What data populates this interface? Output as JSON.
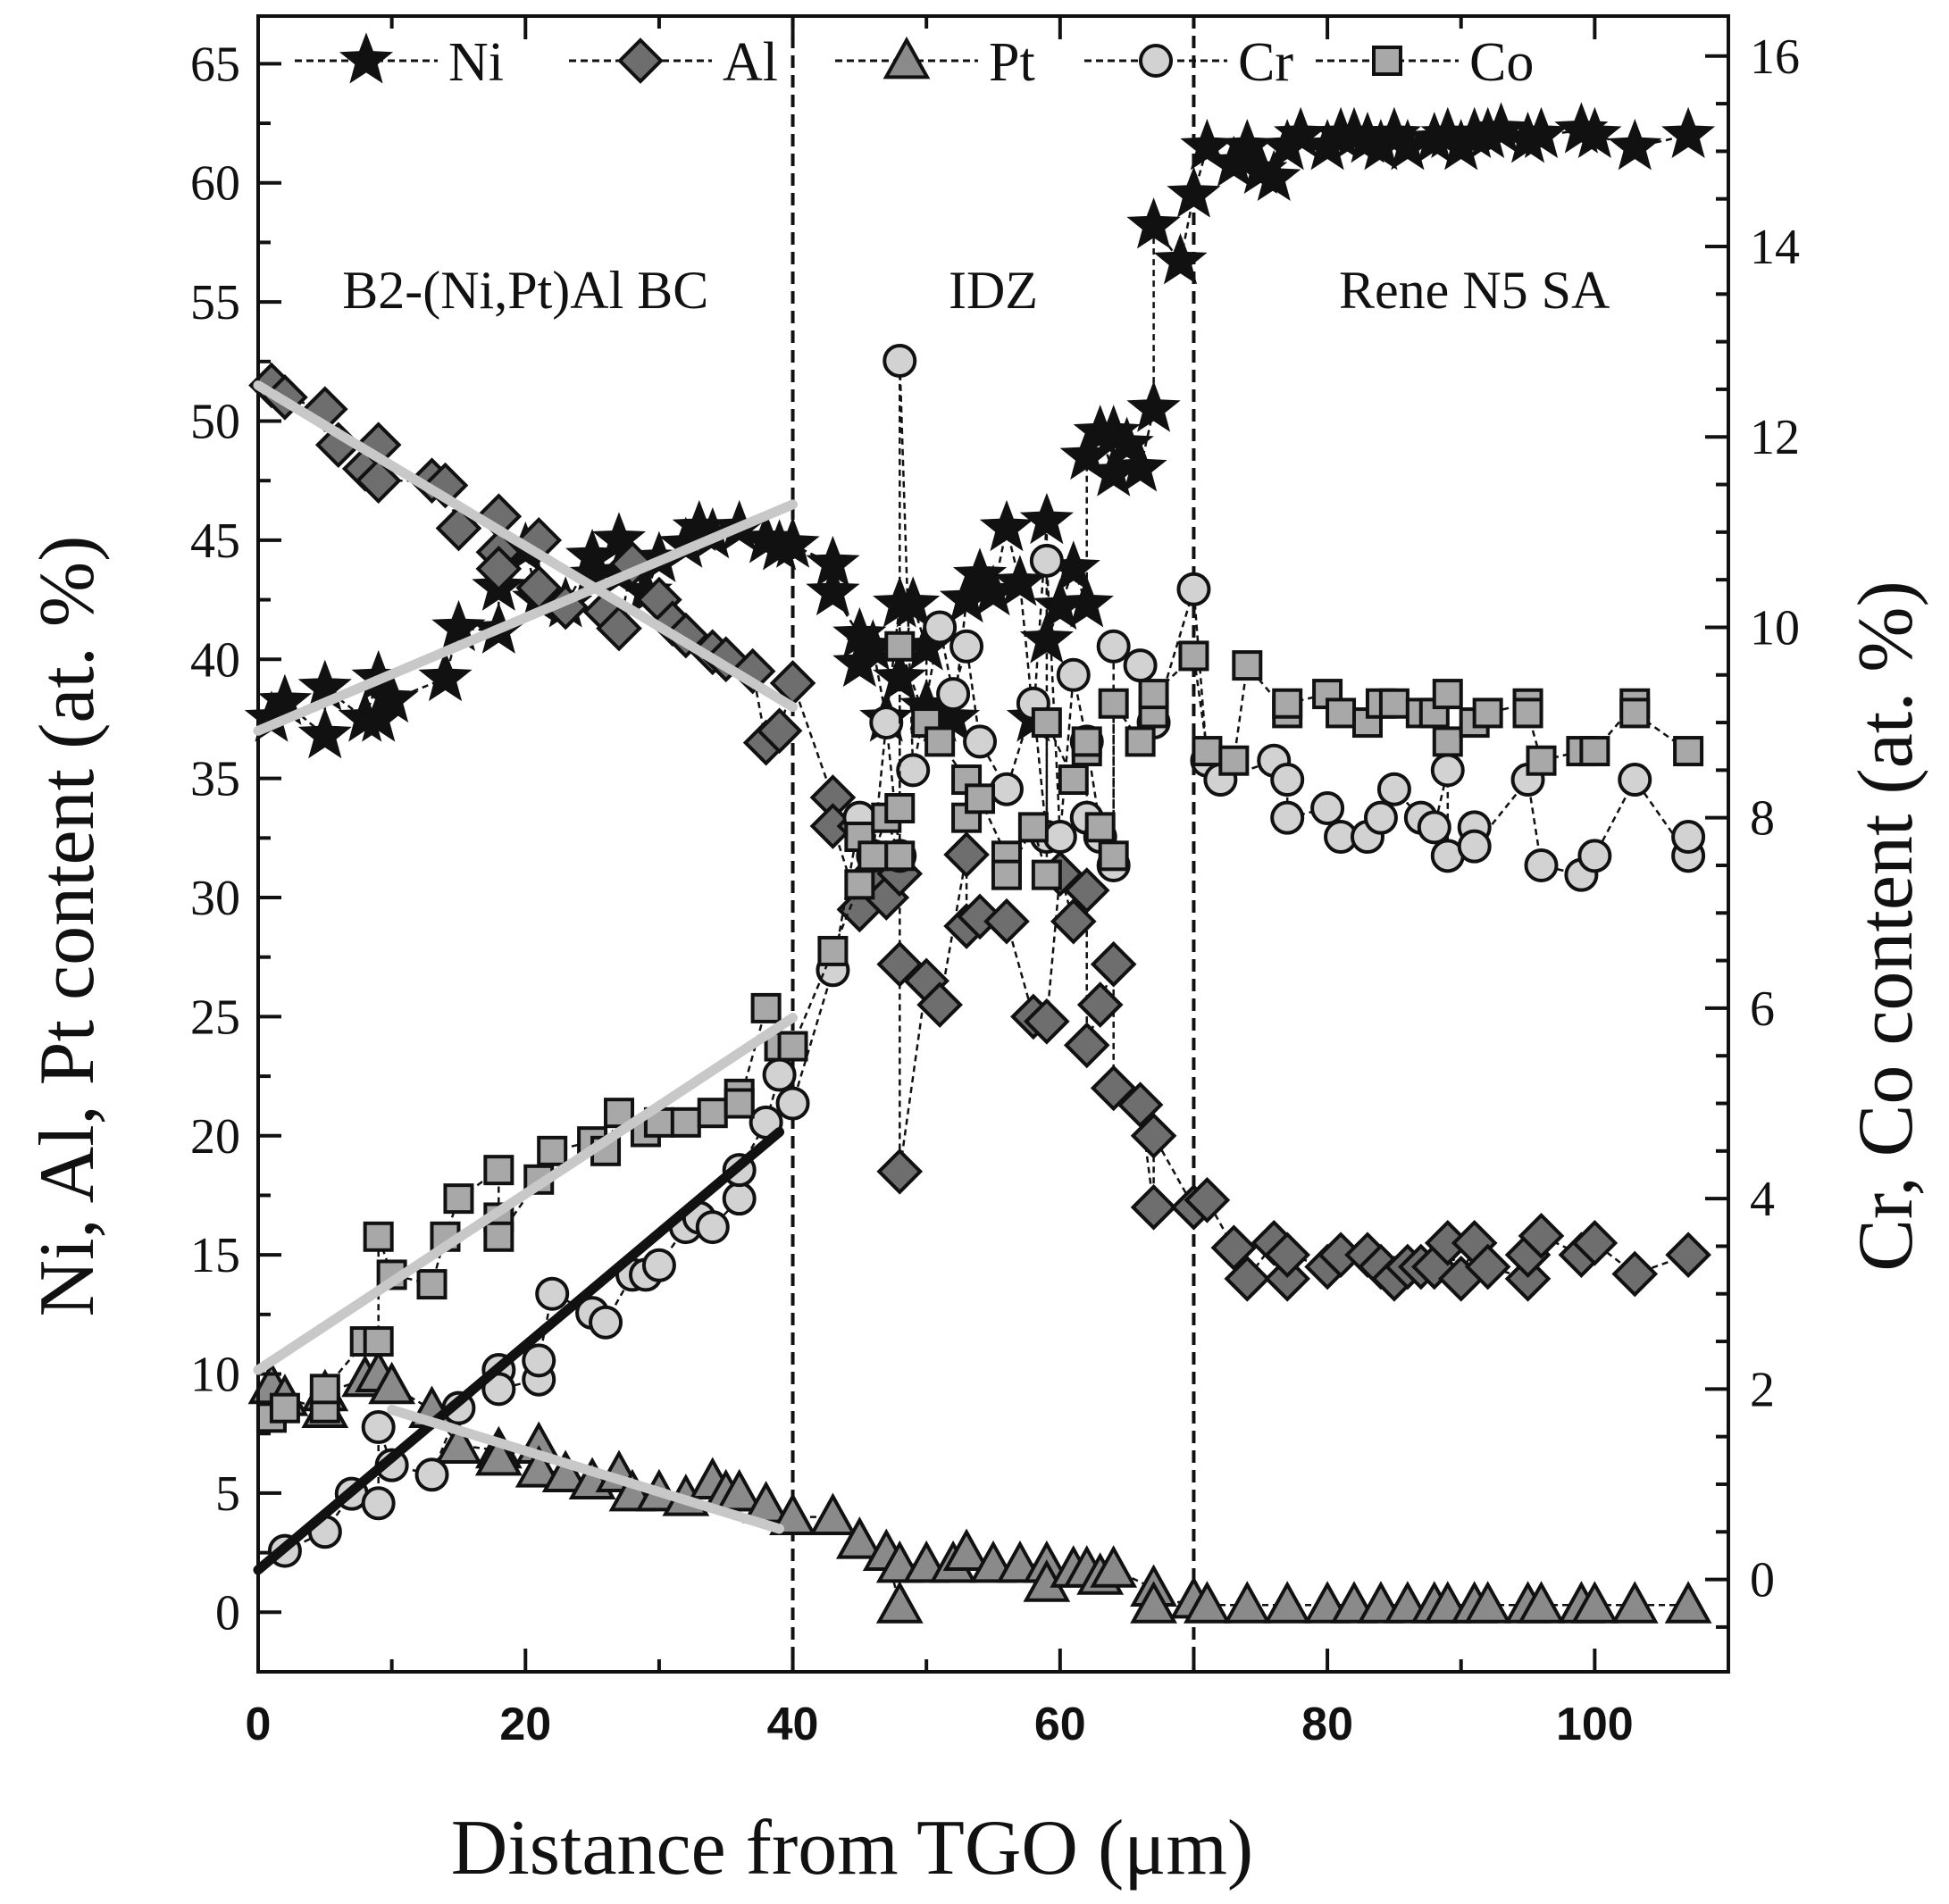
{
  "chart_data": {
    "type": "scatter",
    "xlabel": "Distance from TGO (μm)",
    "ylabel_left": "Ni, Al, Pt content (at. %)",
    "ylabel_right": "Cr, Co content (at. %)",
    "xlim": [
      0,
      110
    ],
    "ylim_left": [
      -2.5,
      67
    ],
    "ylim_right": [
      -0.97,
      16.42
    ],
    "x_ticks": [
      0,
      20,
      40,
      60,
      80,
      100
    ],
    "y_left_ticks": [
      0,
      5,
      10,
      15,
      20,
      25,
      30,
      35,
      40,
      45,
      50,
      55,
      60,
      65
    ],
    "y_right_ticks": [
      0,
      2,
      4,
      6,
      8,
      10,
      12,
      14,
      16
    ],
    "zone_boundaries": [
      40,
      70
    ],
    "regions": [
      {
        "label": "B2-(Ni,Pt)Al BC",
        "x_center": 20
      },
      {
        "label": "IDZ",
        "x_center": 55
      },
      {
        "label": "Rene N5 SA",
        "x_center": 91
      }
    ],
    "legend": [
      "Ni",
      "Al",
      "Pt",
      "Cr",
      "Co"
    ],
    "series": [
      {
        "name": "Ni",
        "axis": "left",
        "marker": "star",
        "x": [
          1,
          2,
          5,
          5,
          8,
          9,
          9,
          10,
          14,
          15,
          18,
          18,
          20,
          21,
          23,
          25,
          25,
          27,
          27,
          29,
          30,
          32,
          33,
          34,
          36,
          38,
          39,
          40,
          43,
          43,
          45,
          45,
          46,
          47,
          48,
          48,
          49,
          50,
          50,
          51,
          52,
          53,
          54,
          55,
          56,
          57,
          58,
          59,
          59,
          60,
          61,
          62,
          62,
          63,
          64,
          64,
          65,
          66,
          67,
          67,
          69,
          70,
          71,
          73,
          74,
          75,
          76,
          77,
          78,
          80,
          81,
          82,
          83,
          84,
          85,
          86,
          88,
          89,
          90,
          91,
          92,
          93,
          95,
          96,
          99,
          100,
          103,
          107
        ],
        "y": [
          37.5,
          38.2,
          36.8,
          38.8,
          37.5,
          39.2,
          37.5,
          38.3,
          39.2,
          41.3,
          41.2,
          43,
          44.6,
          42.5,
          42.3,
          44.3,
          43.5,
          43.6,
          45,
          42.8,
          44.2,
          44.8,
          45.5,
          45.2,
          45.5,
          45,
          44.7,
          44.8,
          44,
          42.8,
          41,
          39.8,
          40.5,
          37.5,
          42.3,
          39.2,
          42.3,
          40.5,
          38,
          37.5,
          37.5,
          42.5,
          43.5,
          42.8,
          45.5,
          43.2,
          37.5,
          45.8,
          40.8,
          42.2,
          43.8,
          42.3,
          48.5,
          49.5,
          47.8,
          49.5,
          49,
          48,
          50.5,
          58.2,
          56.7,
          59.5,
          61.5,
          60.8,
          61.5,
          60.5,
          60.2,
          61.5,
          62,
          61.5,
          62,
          62,
          61.8,
          61.5,
          62,
          61.5,
          61.8,
          62,
          61.5,
          62,
          62,
          62.2,
          61.8,
          62,
          62.2,
          62,
          61.5,
          62
        ]
      },
      {
        "name": "Al",
        "axis": "left",
        "marker": "diamond",
        "x": [
          1,
          2,
          5,
          6,
          8,
          9,
          9,
          13,
          14,
          15,
          18,
          18,
          18,
          21,
          21,
          23,
          26,
          27,
          28,
          30,
          31,
          32,
          34,
          35,
          37,
          38,
          39,
          40,
          43,
          43,
          45,
          45,
          46,
          47,
          48,
          48,
          48,
          50,
          51,
          53,
          53,
          54,
          56,
          58,
          59,
          60,
          61,
          62,
          62,
          63,
          64,
          64,
          66,
          67,
          67,
          70,
          71,
          73,
          74,
          76,
          77,
          77,
          80,
          81,
          83,
          84,
          85,
          86,
          87,
          88,
          89,
          90,
          91,
          92,
          95,
          95,
          96,
          99,
          100,
          103,
          107
        ],
        "y": [
          51.5,
          51,
          50.5,
          49,
          48,
          49,
          47.5,
          47.5,
          47.3,
          45.5,
          46,
          44.5,
          43.8,
          45,
          43,
          42.2,
          42,
          41.3,
          44,
          42.5,
          41.5,
          41,
          40.3,
          40,
          39.5,
          36.5,
          37,
          39,
          34.2,
          33,
          29.5,
          33,
          31,
          30,
          31,
          27.2,
          18.5,
          26.5,
          25.5,
          31.8,
          28.8,
          29.2,
          29,
          25,
          24.8,
          31,
          29,
          30.3,
          23.8,
          25.5,
          27.2,
          22,
          21.3,
          17,
          20,
          17,
          17.3,
          15.3,
          14,
          15.5,
          14,
          15,
          14.5,
          15,
          15,
          14.5,
          14,
          14.5,
          14.5,
          14.5,
          15.5,
          14,
          15.5,
          14.5,
          14,
          15,
          15.8,
          15,
          15.5,
          14.2,
          15
        ]
      },
      {
        "name": "Pt",
        "axis": "left",
        "marker": "triangle",
        "x": [
          1,
          2,
          5,
          5,
          8,
          9,
          10,
          13,
          15,
          18,
          18,
          21,
          21,
          23,
          25,
          27,
          28,
          30,
          32,
          34,
          35,
          36,
          38,
          40,
          43,
          45,
          47,
          48,
          48,
          50,
          52,
          53,
          55,
          57,
          59,
          59,
          61,
          62,
          63,
          64,
          67,
          67,
          70,
          71,
          74,
          77,
          80,
          82,
          84,
          86,
          88,
          89,
          91,
          92,
          95,
          96,
          99,
          100,
          103,
          107
        ],
        "y": [
          9.5,
          9,
          8.5,
          9.2,
          9.8,
          10,
          9.5,
          8.5,
          7,
          6.8,
          6.5,
          7,
          6,
          5.8,
          5.5,
          5.8,
          5,
          5,
          4.8,
          5.5,
          5,
          5,
          4.5,
          4,
          4,
          3,
          2.5,
          0.3,
          2,
          2,
          2,
          2.5,
          2,
          2,
          2,
          1.2,
          1.8,
          1.8,
          1.5,
          1.8,
          1,
          0.3,
          0.5,
          0.3,
          0.3,
          0.3,
          0.3,
          0.3,
          0.3,
          0.3,
          0.3,
          0.3,
          0.3,
          0.3,
          0.3,
          0.3,
          0.3,
          0.3,
          0.3,
          0.3
        ]
      },
      {
        "name": "Cr",
        "axis": "right",
        "marker": "circle",
        "x": [
          2,
          5,
          7,
          9,
          9,
          10,
          13,
          15,
          18,
          18,
          21,
          21,
          22,
          25,
          26,
          28,
          29,
          30,
          32,
          33,
          34,
          36,
          36,
          38,
          39,
          40,
          43,
          45,
          46,
          47,
          48,
          48,
          49,
          51,
          52,
          53,
          54,
          56,
          58,
          59,
          59,
          60,
          61,
          62,
          62,
          63,
          64,
          64,
          66,
          67,
          70,
          71,
          72,
          76,
          77,
          77,
          80,
          81,
          83,
          84,
          85,
          87,
          88,
          89,
          89,
          91,
          91,
          95,
          96,
          99,
          100,
          103,
          107,
          107
        ],
        "y": [
          0.3,
          0.5,
          0.9,
          0.8,
          1.6,
          1.2,
          1.1,
          1.8,
          2.2,
          2,
          2.1,
          2.3,
          3,
          2.8,
          2.7,
          3.2,
          3.2,
          3.3,
          3.7,
          3.8,
          3.7,
          4,
          4.3,
          4.8,
          5.3,
          5,
          6.4,
          8,
          7.6,
          9,
          7.6,
          12.8,
          8.5,
          10,
          9.3,
          9.8,
          8.8,
          8.3,
          9.2,
          7.8,
          10.7,
          7.8,
          9.5,
          8.8,
          8,
          7.8,
          7.5,
          9.8,
          9.6,
          9,
          10.4,
          8.6,
          8.4,
          8.6,
          8.4,
          8,
          8.1,
          7.8,
          7.8,
          8,
          8.3,
          8,
          7.9,
          8.5,
          7.6,
          7.9,
          7.7,
          8.4,
          7.5,
          7.4,
          7.6,
          8.4,
          7.6,
          7.8
        ]
      },
      {
        "name": "Co",
        "axis": "right",
        "marker": "square",
        "x": [
          1,
          2,
          5,
          5,
          8,
          9,
          9,
          10,
          13,
          14,
          15,
          18,
          18,
          18,
          21,
          22,
          25,
          26,
          27,
          29,
          30,
          32,
          34,
          36,
          36,
          38,
          39,
          40,
          43,
          45,
          45,
          46,
          47,
          48,
          48,
          48,
          50,
          51,
          53,
          53,
          54,
          56,
          56,
          58,
          59,
          59,
          61,
          62,
          62,
          63,
          64,
          64,
          66,
          67,
          67,
          70,
          71,
          73,
          74,
          77,
          77,
          80,
          81,
          83,
          84,
          85,
          87,
          88,
          89,
          89,
          91,
          92,
          95,
          95,
          96,
          99,
          100,
          103,
          103,
          107
        ],
        "y": [
          1.7,
          1.8,
          1.8,
          2,
          2.5,
          2.5,
          3.6,
          3.2,
          3.1,
          3.6,
          4,
          4.3,
          3.8,
          3.6,
          4.2,
          4.5,
          4.6,
          4.5,
          4.9,
          4.7,
          4.8,
          4.8,
          4.9,
          5.1,
          5,
          6,
          5.6,
          5.6,
          6.6,
          7.3,
          7.8,
          7.6,
          8,
          7.6,
          8.1,
          9.8,
          9,
          8.8,
          8.4,
          8,
          8.2,
          7.6,
          7.4,
          7.9,
          7.4,
          9,
          8.4,
          8.7,
          8.8,
          7.9,
          7.6,
          9.2,
          8.8,
          9.1,
          9.3,
          9.7,
          8.7,
          8.6,
          9.6,
          9.1,
          9.2,
          9.3,
          9.1,
          9,
          9.2,
          9.2,
          9.1,
          9.1,
          8.8,
          9.3,
          9,
          9.1,
          9.2,
          9.1,
          8.6,
          8.7,
          8.7,
          9.2,
          9.1,
          8.7
        ]
      }
    ],
    "trend_lines": [
      {
        "axis": "left",
        "color": "#c8c8c8",
        "x": [
          0,
          40
        ],
        "y": [
          51.5,
          38
        ]
      },
      {
        "axis": "left",
        "color": "#c8c8c8",
        "x": [
          0,
          40
        ],
        "y": [
          37,
          46.5
        ]
      },
      {
        "axis": "right",
        "color": "#c8c8c8",
        "x": [
          0,
          40
        ],
        "y": [
          2.2,
          5.9
        ]
      },
      {
        "axis": "right",
        "color": "#111111",
        "x": [
          0,
          39
        ],
        "y": [
          0.1,
          4.7
        ]
      },
      {
        "axis": "left",
        "color": "#c8c8c8",
        "x": [
          10,
          39
        ],
        "y": [
          8.5,
          3.5
        ]
      }
    ]
  }
}
